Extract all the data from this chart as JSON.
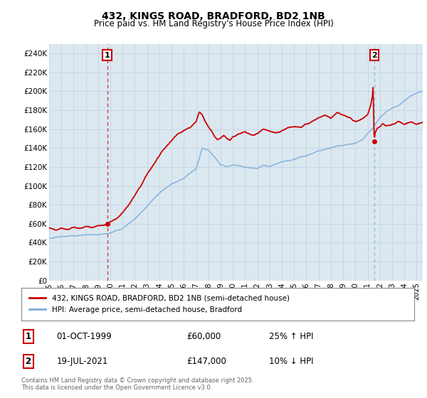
{
  "title": "432, KINGS ROAD, BRADFORD, BD2 1NB",
  "subtitle": "Price paid vs. HM Land Registry's House Price Index (HPI)",
  "ylabel_ticks": [
    "£0",
    "£20K",
    "£40K",
    "£60K",
    "£80K",
    "£100K",
    "£120K",
    "£140K",
    "£160K",
    "£180K",
    "£200K",
    "£220K",
    "£240K"
  ],
  "ytick_vals": [
    0,
    20000,
    40000,
    60000,
    80000,
    100000,
    120000,
    140000,
    160000,
    180000,
    200000,
    220000,
    240000
  ],
  "ylim": [
    0,
    250000
  ],
  "xlim_start": 1995.0,
  "xlim_end": 2025.5,
  "sale1_x": 1999.75,
  "sale1_y": 60000,
  "sale2_x": 2021.54,
  "sale2_y": 147000,
  "red_color": "#cc0000",
  "blue_color": "#7aaddc",
  "vline1_color": "#cc0000",
  "vline2_color": "#7aaddc",
  "grid_color": "#c8d8e8",
  "background_color": "#dce8f0",
  "legend_line1": "432, KINGS ROAD, BRADFORD, BD2 1NB (semi-detached house)",
  "legend_line2": "HPI: Average price, semi-detached house, Bradford",
  "info1_date": "01-OCT-1999",
  "info1_price": "£60,000",
  "info1_hpi": "25% ↑ HPI",
  "info2_date": "19-JUL-2021",
  "info2_price": "£147,000",
  "info2_hpi": "10% ↓ HPI",
  "footer": "Contains HM Land Registry data © Crown copyright and database right 2025.\nThis data is licensed under the Open Government Licence v3.0.",
  "xtick_years": [
    1995,
    1996,
    1997,
    1998,
    1999,
    2000,
    2001,
    2002,
    2003,
    2004,
    2005,
    2006,
    2007,
    2008,
    2009,
    2010,
    2011,
    2012,
    2013,
    2014,
    2015,
    2016,
    2017,
    2018,
    2019,
    2020,
    2021,
    2022,
    2023,
    2024,
    2025
  ],
  "hpi_waypoints": [
    [
      1995.0,
      45000
    ],
    [
      1996.0,
      46500
    ],
    [
      1997.0,
      47500
    ],
    [
      1998.0,
      48000
    ],
    [
      1999.0,
      48500
    ],
    [
      2000.0,
      50000
    ],
    [
      2001.0,
      55000
    ],
    [
      2002.0,
      65000
    ],
    [
      2003.0,
      78000
    ],
    [
      2004.0,
      92000
    ],
    [
      2005.0,
      102000
    ],
    [
      2006.0,
      108000
    ],
    [
      2007.0,
      118000
    ],
    [
      2007.5,
      140000
    ],
    [
      2008.0,
      138000
    ],
    [
      2008.5,
      130000
    ],
    [
      2009.0,
      122000
    ],
    [
      2009.5,
      120000
    ],
    [
      2010.0,
      122000
    ],
    [
      2011.0,
      120000
    ],
    [
      2012.0,
      118000
    ],
    [
      2012.5,
      122000
    ],
    [
      2013.0,
      120000
    ],
    [
      2014.0,
      125000
    ],
    [
      2015.0,
      128000
    ],
    [
      2016.0,
      132000
    ],
    [
      2017.0,
      137000
    ],
    [
      2018.0,
      140000
    ],
    [
      2019.0,
      143000
    ],
    [
      2020.0,
      145000
    ],
    [
      2020.5,
      148000
    ],
    [
      2021.0,
      155000
    ],
    [
      2021.5,
      162000
    ],
    [
      2022.0,
      172000
    ],
    [
      2022.5,
      178000
    ],
    [
      2023.0,
      182000
    ],
    [
      2023.5,
      185000
    ],
    [
      2024.0,
      190000
    ],
    [
      2024.5,
      195000
    ],
    [
      2025.5,
      200000
    ]
  ],
  "prop_waypoints": [
    [
      1995.0,
      55000
    ],
    [
      1995.5,
      53000
    ],
    [
      1996.0,
      56000
    ],
    [
      1996.5,
      54000
    ],
    [
      1997.0,
      57000
    ],
    [
      1997.5,
      55000
    ],
    [
      1998.0,
      57000
    ],
    [
      1998.5,
      56000
    ],
    [
      1999.0,
      58000
    ],
    [
      1999.5,
      59000
    ],
    [
      1999.75,
      60000
    ],
    [
      2000.0,
      62000
    ],
    [
      2000.5,
      65000
    ],
    [
      2001.0,
      72000
    ],
    [
      2001.5,
      80000
    ],
    [
      2002.0,
      90000
    ],
    [
      2002.5,
      100000
    ],
    [
      2003.0,
      112000
    ],
    [
      2003.5,
      122000
    ],
    [
      2004.0,
      132000
    ],
    [
      2004.5,
      140000
    ],
    [
      2005.0,
      148000
    ],
    [
      2005.5,
      155000
    ],
    [
      2006.0,
      158000
    ],
    [
      2006.5,
      162000
    ],
    [
      2007.0,
      168000
    ],
    [
      2007.25,
      178000
    ],
    [
      2007.5,
      175000
    ],
    [
      2007.75,
      168000
    ],
    [
      2008.0,
      162000
    ],
    [
      2008.25,
      158000
    ],
    [
      2008.5,
      152000
    ],
    [
      2008.75,
      148000
    ],
    [
      2009.0,
      150000
    ],
    [
      2009.25,
      153000
    ],
    [
      2009.5,
      150000
    ],
    [
      2009.75,
      148000
    ],
    [
      2010.0,
      152000
    ],
    [
      2010.5,
      155000
    ],
    [
      2011.0,
      157000
    ],
    [
      2011.5,
      153000
    ],
    [
      2012.0,
      155000
    ],
    [
      2012.5,
      160000
    ],
    [
      2013.0,
      158000
    ],
    [
      2013.5,
      155000
    ],
    [
      2014.0,
      158000
    ],
    [
      2014.5,
      162000
    ],
    [
      2015.0,
      163000
    ],
    [
      2015.5,
      162000
    ],
    [
      2016.0,
      165000
    ],
    [
      2016.5,
      168000
    ],
    [
      2017.0,
      172000
    ],
    [
      2017.5,
      175000
    ],
    [
      2018.0,
      172000
    ],
    [
      2018.5,
      178000
    ],
    [
      2019.0,
      175000
    ],
    [
      2019.5,
      172000
    ],
    [
      2020.0,
      168000
    ],
    [
      2020.5,
      170000
    ],
    [
      2021.0,
      175000
    ],
    [
      2021.25,
      185000
    ],
    [
      2021.4,
      195000
    ],
    [
      2021.45,
      205000
    ],
    [
      2021.54,
      147000
    ],
    [
      2021.6,
      155000
    ],
    [
      2021.75,
      160000
    ],
    [
      2022.0,
      162000
    ],
    [
      2022.25,
      165000
    ],
    [
      2022.5,
      163000
    ],
    [
      2023.0,
      165000
    ],
    [
      2023.5,
      168000
    ],
    [
      2024.0,
      165000
    ],
    [
      2024.5,
      168000
    ],
    [
      2025.0,
      165000
    ],
    [
      2025.5,
      167000
    ]
  ]
}
